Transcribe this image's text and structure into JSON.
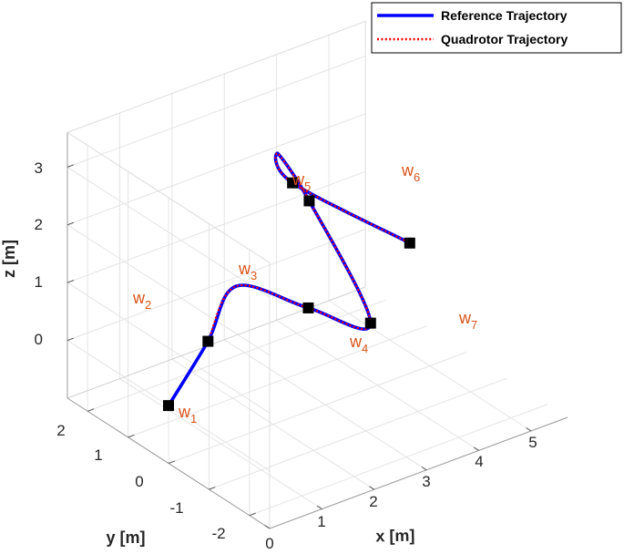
{
  "chart_data": {
    "type": "line3d",
    "xlabel": "x [m]",
    "ylabel": "y [m]",
    "zlabel": "z [m]",
    "x_ticks": [
      "0",
      "1",
      "2",
      "3",
      "4",
      "5"
    ],
    "y_ticks": [
      "2",
      "1",
      "0",
      "-1",
      "-2"
    ],
    "z_ticks": [
      "3",
      "2",
      "1",
      "0"
    ],
    "grid": true,
    "legend_position": "top-right",
    "series": [
      {
        "name": "Reference Trajectory",
        "color": "#0000ff",
        "style": "solid"
      },
      {
        "name": "Quadrotor Trajectory",
        "color": "#ff0000",
        "style": "dotted"
      }
    ],
    "waypoints": [
      {
        "label": "w",
        "sub": "1",
        "x": 0.0,
        "y": 0.0,
        "z": 0.0
      },
      {
        "label": "w",
        "sub": "2",
        "x": 0.6,
        "y": -0.2,
        "z": 1.0
      },
      {
        "label": "w",
        "sub": "3",
        "x": 1.9,
        "y": -1.0,
        "z": 1.5
      },
      {
        "label": "w",
        "sub": "4",
        "x": 3.4,
        "y": -0.6,
        "z": 0.55
      },
      {
        "label": "w",
        "sub": "5",
        "x": 3.0,
        "y": 0.4,
        "z": 2.35
      },
      {
        "label": "w",
        "sub": "6",
        "x": 3.3,
        "y": 1.2,
        "z": 2.2
      },
      {
        "label": "w",
        "sub": "7",
        "x": 5.0,
        "y": 0.5,
        "z": 0.9
      }
    ]
  }
}
